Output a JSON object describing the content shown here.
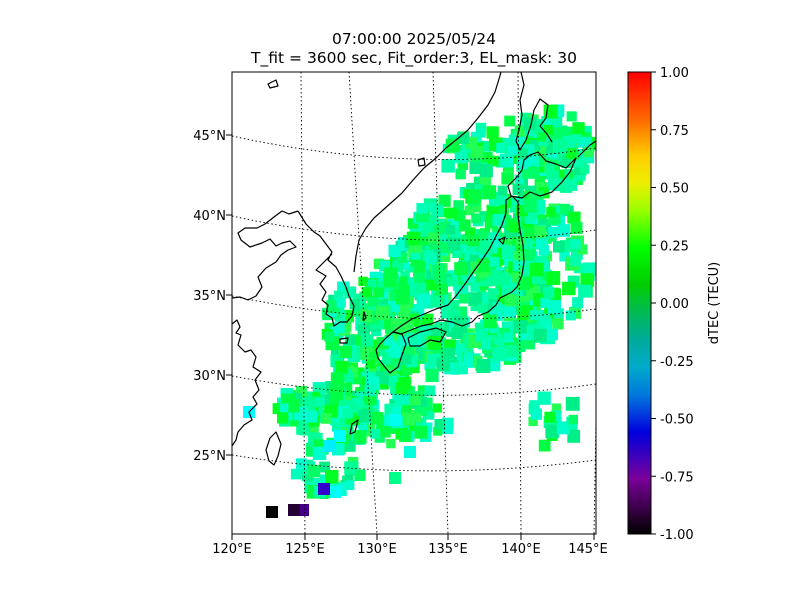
{
  "title": {
    "line1": "07:00:00 2025/05/24",
    "line2": "T_fit = 3600 sec, Fit_order:3, EL_mask: 30"
  },
  "map": {
    "lon_range": [
      120,
      145
    ],
    "lat_range": [
      20,
      48
    ],
    "lon_ticks": [
      "120°E",
      "125°E",
      "130°E",
      "135°E",
      "140°E",
      "145°E"
    ],
    "lat_ticks": [
      "25°N",
      "30°N",
      "35°N",
      "40°N",
      "45°N"
    ]
  },
  "colorbar": {
    "label": "dTEC (TECU)",
    "min": -1.0,
    "max": 1.0,
    "ticks": [
      "1.00",
      "0.75",
      "0.50",
      "0.25",
      "0.00",
      "-0.25",
      "-0.50",
      "-0.75",
      "-1.00"
    ],
    "colormap": "nipy_spectral"
  },
  "dtec_region_estimates": [
    {
      "region": "Japan mainland and surrounding seas",
      "dtec_range": [
        0.0,
        0.2
      ]
    },
    {
      "region": "East China Sea / Ryukyu",
      "dtec_range": [
        -0.15,
        0.2
      ]
    },
    {
      "region": "South-west corner near 123E 21N",
      "dtec_range": [
        -1.0,
        -0.75
      ]
    }
  ]
}
